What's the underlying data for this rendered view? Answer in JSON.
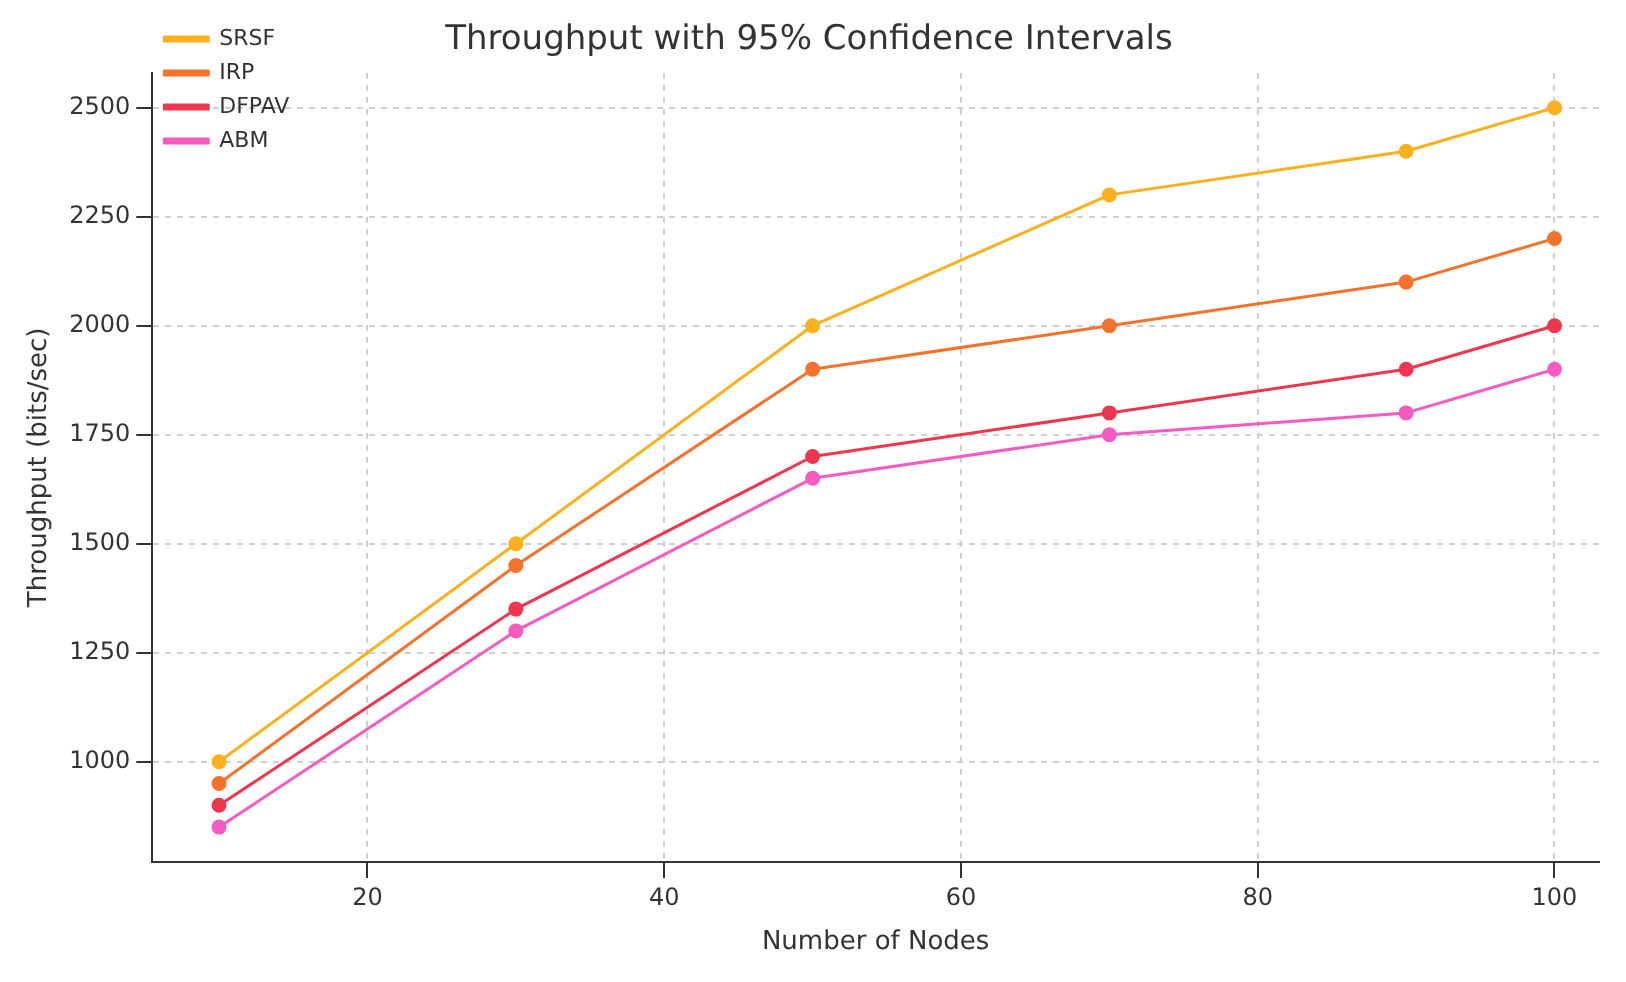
{
  "chart_data": {
    "type": "line",
    "title": "Throughput with 95% Confidence Intervals",
    "xlabel": "Number of Nodes",
    "ylabel": "Throughput (bits/sec)",
    "x": [
      10,
      30,
      50,
      70,
      90,
      100
    ],
    "series": [
      {
        "name": "SRSF",
        "color": "#fbb11d",
        "values": [
          1000,
          1500,
          2000,
          2300,
          2400,
          2500
        ]
      },
      {
        "name": "IRP",
        "color": "#f4722b",
        "values": [
          950,
          1450,
          1900,
          2000,
          2100,
          2200
        ]
      },
      {
        "name": "DFPAV",
        "color": "#f0364f",
        "values": [
          900,
          1350,
          1700,
          1800,
          1900,
          2000
        ]
      },
      {
        "name": "ABM",
        "color": "#f55bc0",
        "values": [
          850,
          1300,
          1650,
          1750,
          1800,
          1900
        ]
      }
    ],
    "xlim": [
      5.5,
      103
    ],
    "xticks": [
      20,
      40,
      60,
      80,
      100
    ],
    "ylim": [
      770,
      2580
    ],
    "yticks": [
      1000,
      1250,
      1500,
      1750,
      2000,
      2250,
      2500
    ],
    "grid": true,
    "legend": "top left",
    "marker": "circle",
    "line_style": "solid"
  }
}
